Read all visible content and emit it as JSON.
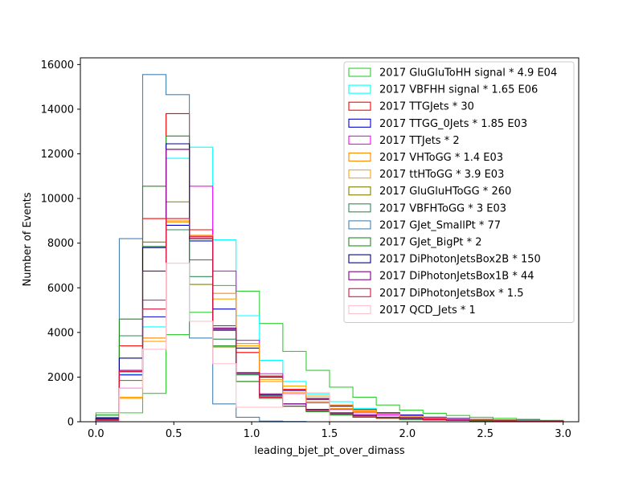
{
  "chart_data": {
    "type": "histogram-step",
    "xlabel": "leading_bjet_pt_over_dimass",
    "ylabel": "Number of Events",
    "xlim": [
      -0.1,
      3.1
    ],
    "ylim": [
      0,
      16300
    ],
    "xticks": [
      0.0,
      0.5,
      1.0,
      1.5,
      2.0,
      2.5,
      3.0
    ],
    "xtick_labels": [
      "0.0",
      "0.5",
      "1.0",
      "1.5",
      "2.0",
      "2.5",
      "3.0"
    ],
    "yticks": [
      0,
      2000,
      4000,
      6000,
      8000,
      10000,
      12000,
      14000,
      16000
    ],
    "ytick_labels": [
      "0",
      "2000",
      "4000",
      "6000",
      "8000",
      "10000",
      "12000",
      "14000",
      "16000"
    ],
    "legend_position": "top-right",
    "bin_edges": [
      0.0,
      0.15,
      0.3,
      0.45,
      0.6,
      0.75,
      0.9,
      1.05,
      1.2,
      1.35,
      1.5,
      1.65,
      1.8,
      1.95,
      2.1,
      2.25,
      2.4,
      2.55,
      2.7,
      2.85,
      3.0
    ],
    "series": [
      {
        "name": "2017 GluGluToHH signal * 4.9 E04",
        "color": "#32cd32",
        "values": [
          400,
          400,
          1270,
          3900,
          4900,
          6100,
          5850,
          4400,
          3150,
          2300,
          1550,
          1100,
          750,
          520,
          380,
          280,
          200,
          150,
          110,
          60
        ]
      },
      {
        "name": "2017 VBFHH signal * 1.65 E06",
        "color": "#00ffff",
        "values": [
          50,
          2200,
          4250,
          11800,
          12300,
          8150,
          4750,
          2750,
          1800,
          1250,
          900,
          600,
          400,
          300,
          200,
          150,
          100,
          80,
          60,
          40
        ]
      },
      {
        "name": "2017 TTGJets * 30",
        "color": "#ff0000",
        "values": [
          100,
          3400,
          9100,
          13800,
          8600,
          4300,
          3100,
          2050,
          1450,
          1050,
          750,
          550,
          400,
          300,
          200,
          150,
          100,
          80,
          60,
          40
        ]
      },
      {
        "name": "2017 TTGG_0Jets * 1.85 E03",
        "color": "#0000cd",
        "values": [
          150,
          2100,
          4700,
          8800,
          8100,
          5050,
          3300,
          2000,
          1400,
          1000,
          700,
          500,
          400,
          300,
          200,
          150,
          100,
          80,
          60,
          40
        ]
      },
      {
        "name": "2017 TTJets * 2",
        "color": "#ff00ff",
        "values": [
          50,
          1500,
          5450,
          12200,
          10550,
          6750,
          3650,
          2150,
          1250,
          850,
          550,
          400,
          300,
          200,
          150,
          100,
          80,
          60,
          40,
          30
        ]
      },
      {
        "name": "2017 VHToGG * 1.4 E03",
        "color": "#ff8c00",
        "values": [
          100,
          1050,
          3750,
          8950,
          8350,
          5750,
          3500,
          1900,
          1300,
          900,
          600,
          450,
          350,
          250,
          180,
          130,
          90,
          70,
          50,
          30
        ]
      },
      {
        "name": "2017 ttHToGG * 3.9 E03",
        "color": "#ffa500",
        "values": [
          100,
          1100,
          3600,
          9000,
          8250,
          5500,
          3400,
          1800,
          1600,
          1150,
          750,
          500,
          350,
          250,
          180,
          130,
          90,
          70,
          50,
          30
        ]
      },
      {
        "name": "2017 GluGluHToGG * 260",
        "color": "#808000",
        "values": [
          100,
          1850,
          8050,
          9850,
          6150,
          3350,
          1800,
          1150,
          700,
          500,
          350,
          250,
          180,
          130,
          90,
          70,
          50,
          40,
          30,
          20
        ]
      },
      {
        "name": "2017 VBFHToGG * 3 E03",
        "color": "#2e8b57",
        "values": [
          150,
          3850,
          7850,
          8600,
          6500,
          3700,
          2100,
          1150,
          700,
          500,
          350,
          250,
          180,
          130,
          90,
          70,
          50,
          40,
          30,
          20
        ]
      },
      {
        "name": "2017 GJet_SmallPt * 77",
        "color": "#4682b4",
        "values": [
          200,
          8200,
          15550,
          14650,
          3750,
          800,
          200,
          30,
          10,
          0,
          0,
          0,
          0,
          0,
          0,
          0,
          0,
          0,
          0,
          0
        ]
      },
      {
        "name": "2017 GJet_BigPt * 2",
        "color": "#228b22",
        "values": [
          300,
          4600,
          10550,
          12800,
          7250,
          3400,
          1800,
          1050,
          700,
          450,
          300,
          200,
          150,
          100,
          80,
          60,
          40,
          30,
          20,
          10
        ]
      },
      {
        "name": "2017 DiPhotonJetsBox2B * 150",
        "color": "#00008b",
        "values": [
          150,
          2850,
          7800,
          12450,
          8200,
          4100,
          2150,
          1200,
          800,
          550,
          400,
          300,
          200,
          150,
          100,
          80,
          60,
          40,
          30,
          20
        ]
      },
      {
        "name": "2017 DiPhotonJetsBox1B * 44",
        "color": "#800080",
        "values": [
          100,
          2300,
          6750,
          12200,
          8200,
          4200,
          2200,
          1250,
          800,
          550,
          400,
          300,
          200,
          150,
          100,
          80,
          60,
          40,
          30,
          20
        ]
      },
      {
        "name": "2017 DiPhotonJetsBox * 1.5",
        "color": "#dc143c",
        "values": [
          100,
          2250,
          5050,
          9100,
          8300,
          4150,
          2150,
          1100,
          700,
          500,
          350,
          250,
          180,
          130,
          90,
          70,
          50,
          40,
          30,
          20
        ]
      },
      {
        "name": "2017 QCD_Jets * 1",
        "color": "#ffc0cb",
        "values": [
          0,
          1500,
          3250,
          7100,
          4500,
          2600,
          650,
          650,
          1250,
          1300,
          0,
          0,
          0,
          0,
          0,
          0,
          0,
          0,
          0,
          0
        ]
      }
    ]
  }
}
